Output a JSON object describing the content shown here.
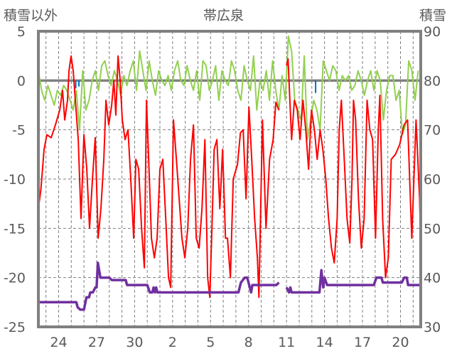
{
  "chart_data": {
    "type": "line",
    "title": "帯広泉",
    "ylabel_left": "積雪以外",
    "ylabel_right": "積雪",
    "ylim_left": [
      -25,
      5
    ],
    "ylim_right": [
      30,
      90
    ],
    "yticks_left": [
      5,
      0,
      -5,
      -10,
      -15,
      -20,
      -25
    ],
    "yticks_right": [
      90,
      80,
      70,
      60,
      50,
      40,
      30
    ],
    "xlim_days": [
      22.4,
      52.6
    ],
    "xticks": [
      {
        "day": 24,
        "label": "24"
      },
      {
        "day": 27,
        "label": "27"
      },
      {
        "day": 30,
        "label": "30"
      },
      {
        "day": 33,
        "label": "2"
      },
      {
        "day": 36,
        "label": "5"
      },
      {
        "day": 39,
        "label": "8"
      },
      {
        "day": 42,
        "label": "11"
      },
      {
        "day": 45,
        "label": "14"
      },
      {
        "day": 48,
        "label": "17"
      },
      {
        "day": 51,
        "label": "20"
      }
    ],
    "grid": true,
    "series": [
      {
        "color": "#92D050",
        "axis": "left",
        "x_start": 22.4,
        "x_step": 0.25,
        "values": [
          1,
          -1,
          -2,
          -0.5,
          -1.5,
          -2.5,
          -1,
          -1.5,
          -0.5,
          -1,
          -2,
          -3,
          -1,
          -5,
          1,
          -3,
          -2,
          0,
          1,
          -1,
          1.5,
          2,
          0.5,
          -0.5,
          1,
          0,
          -1.5,
          0.5,
          -0.5,
          1,
          2,
          -1,
          3,
          1,
          -1,
          2,
          0,
          -1.5,
          1,
          0,
          -0.5,
          0.5,
          -1,
          1,
          2,
          0,
          -0.5,
          1.5,
          0,
          -1,
          1,
          -2,
          2,
          1.5,
          -1,
          0,
          1.5,
          -2,
          1,
          0,
          -0.5,
          2,
          1,
          -1,
          -2,
          1.5,
          0,
          -1,
          2.5,
          -3,
          0,
          -1,
          1,
          -2,
          2,
          -1,
          -3,
          0.5,
          -2,
          4.5,
          3,
          -2,
          -3,
          -4,
          2.5,
          -6,
          -4,
          -2,
          -3,
          -5,
          2,
          1,
          0,
          1.5,
          1,
          -1,
          0.5,
          0,
          0.5,
          -1,
          -0.5,
          1,
          0,
          -1.5,
          0,
          1,
          -1,
          1,
          0,
          -4,
          -1,
          0.5,
          0.5,
          -2,
          -1,
          -5.5,
          -4.5,
          2,
          1,
          -2,
          1
        ]
      },
      {
        "color": "#FF0000",
        "axis": "left",
        "segments": [
          [
            [
              22.4,
              -13
            ],
            [
              22.6,
              -11
            ],
            [
              22.85,
              -7
            ],
            [
              23.07,
              -5.5
            ],
            [
              23.41,
              -5.8
            ],
            [
              23.75,
              -4.5
            ],
            [
              24.09,
              -3
            ],
            [
              24.31,
              -1
            ],
            [
              24.48,
              -4
            ],
            [
              24.7,
              -2
            ],
            [
              24.82,
              1
            ],
            [
              24.98,
              2.5
            ],
            [
              25.15,
              1
            ],
            [
              25.32,
              -2
            ],
            [
              25.55,
              -6
            ],
            [
              25.77,
              -14
            ],
            [
              26.0,
              -5.5
            ],
            [
              26.22,
              -9
            ],
            [
              26.44,
              -15
            ],
            [
              26.67,
              -10
            ],
            [
              26.89,
              -5.8
            ],
            [
              27.12,
              -16
            ],
            [
              27.34,
              -13
            ],
            [
              27.57,
              -8
            ],
            [
              27.74,
              -2
            ],
            [
              27.96,
              -4.5
            ],
            [
              28.19,
              -2.5
            ],
            [
              28.36,
              0
            ],
            [
              28.52,
              -3.5
            ],
            [
              28.69,
              2.5
            ],
            [
              28.86,
              0
            ],
            [
              29.03,
              -4
            ],
            [
              29.25,
              -6
            ],
            [
              29.48,
              -5
            ],
            [
              29.7,
              -10
            ],
            [
              29.93,
              -16
            ],
            [
              30.1,
              -8
            ],
            [
              30.32,
              -9
            ],
            [
              30.55,
              -15
            ],
            [
              30.77,
              -19
            ],
            [
              30.94,
              -2
            ],
            [
              31.11,
              -8
            ],
            [
              31.33,
              -16
            ],
            [
              31.56,
              -18
            ],
            [
              31.78,
              -16
            ],
            [
              32.0,
              -9
            ],
            [
              32.23,
              -8
            ],
            [
              32.46,
              -14
            ],
            [
              32.68,
              -20
            ],
            [
              32.85,
              -21
            ],
            [
              33.07,
              -4
            ],
            [
              33.3,
              -8
            ],
            [
              33.52,
              -12
            ],
            [
              33.74,
              -16
            ],
            [
              33.97,
              -18
            ],
            [
              34.2,
              -15
            ],
            [
              34.42,
              -8
            ],
            [
              34.65,
              -4.5
            ],
            [
              34.87,
              -16
            ],
            [
              35.1,
              -17
            ],
            [
              35.32,
              -13
            ],
            [
              35.55,
              -6
            ],
            [
              35.77,
              -20
            ],
            [
              35.94,
              -22
            ],
            [
              36.11,
              -15
            ],
            [
              36.28,
              -7
            ],
            [
              36.5,
              -6
            ],
            [
              36.73,
              -13
            ],
            [
              36.95,
              -7
            ],
            [
              37.18,
              -16
            ],
            [
              37.34,
              -16
            ],
            [
              37.57,
              -20
            ],
            [
              37.79,
              -10
            ],
            [
              38.13,
              -8.5
            ],
            [
              38.36,
              -5.3
            ],
            [
              38.58,
              -5
            ],
            [
              38.8,
              -12
            ],
            [
              39.03,
              -2.7
            ],
            [
              39.25,
              -8
            ],
            [
              39.48,
              -14
            ],
            [
              39.7,
              -18
            ],
            [
              39.82,
              -22
            ],
            [
              40.1,
              -4
            ],
            [
              40.38,
              -15
            ],
            [
              40.66,
              -8
            ],
            [
              40.94,
              -6
            ],
            [
              41.16,
              -2.2
            ],
            [
              41.39,
              -3
            ]
          ],
          [
            [
              42.0,
              1.5
            ],
            [
              42.12,
              2.2
            ],
            [
              42.4,
              -6
            ],
            [
              42.62,
              -2
            ],
            [
              42.85,
              -3
            ],
            [
              43.07,
              -6
            ],
            [
              43.3,
              -2
            ],
            [
              43.52,
              -5
            ],
            [
              43.74,
              -9
            ],
            [
              43.97,
              -3
            ],
            [
              44.2,
              -5
            ],
            [
              44.42,
              -8
            ],
            [
              44.65,
              -5
            ],
            [
              44.87,
              -7
            ],
            [
              45.1,
              -10
            ],
            [
              45.32,
              -14
            ],
            [
              45.55,
              -17
            ],
            [
              45.77,
              -18.5
            ],
            [
              46.0,
              -14
            ],
            [
              46.16,
              -5
            ],
            [
              46.33,
              -2
            ],
            [
              46.56,
              -8
            ],
            [
              46.78,
              -14
            ],
            [
              47.0,
              -16.5
            ],
            [
              47.17,
              -10
            ],
            [
              47.29,
              -2
            ],
            [
              47.46,
              -4
            ],
            [
              47.68,
              -12
            ],
            [
              47.91,
              -17
            ],
            [
              48.13,
              -14
            ],
            [
              48.36,
              -2
            ],
            [
              48.58,
              -5
            ],
            [
              48.8,
              -6
            ],
            [
              49.03,
              -16
            ],
            [
              49.25,
              -5
            ],
            [
              49.37,
              -1.5
            ],
            [
              49.59,
              -14
            ],
            [
              49.82,
              -20
            ],
            [
              50.04,
              -18
            ],
            [
              50.27,
              -8
            ],
            [
              50.6,
              -7.5
            ],
            [
              50.94,
              -6.5
            ],
            [
              51.28,
              -4.5
            ],
            [
              51.56,
              -4
            ],
            [
              51.89,
              -16
            ],
            [
              52.23,
              -4
            ],
            [
              52.51,
              -12
            ],
            [
              52.62,
              -18
            ]
          ]
        ]
      },
      {
        "color": "#0070C0",
        "axis": "left",
        "segments": [
          [
            [
              25.35,
              0
            ],
            [
              25.35,
              -0.8
            ]
          ],
          [
            [
              25.6,
              0
            ],
            [
              25.6,
              -0.6
            ]
          ],
          [
            [
              44.3,
              0
            ],
            [
              44.3,
              -1.2
            ],
            [
              44.35,
              -1.2
            ]
          ]
        ]
      },
      {
        "color": "#7030A0",
        "axis": "right",
        "segments": [
          [
            [
              22.4,
              35
            ],
            [
              25.4,
              35
            ],
            [
              25.5,
              34
            ],
            [
              25.7,
              33.5
            ],
            [
              26.0,
              33.5
            ],
            [
              26.2,
              36
            ],
            [
              26.4,
              36
            ],
            [
              26.5,
              37
            ],
            [
              26.7,
              37
            ],
            [
              26.9,
              38
            ],
            [
              27.0,
              38
            ],
            [
              27.1,
              43
            ],
            [
              27.3,
              40
            ],
            [
              28.0,
              40
            ],
            [
              28.2,
              39.5
            ],
            [
              29.3,
              39.5
            ],
            [
              29.4,
              38.5
            ],
            [
              31.0,
              38.5
            ],
            [
              31.2,
              37
            ],
            [
              31.4,
              37
            ],
            [
              31.5,
              38
            ],
            [
              31.6,
              37
            ],
            [
              31.7,
              38
            ],
            [
              31.8,
              37
            ],
            [
              38.2,
              37
            ],
            [
              38.4,
              39
            ],
            [
              38.7,
              40
            ],
            [
              38.9,
              40
            ],
            [
              39.1,
              38
            ],
            [
              39.2,
              37
            ],
            [
              39.3,
              38.5
            ],
            [
              41.2,
              38.5
            ],
            [
              41.4,
              39
            ]
          ],
          [
            [
              42.0,
              38
            ],
            [
              42.2,
              37
            ],
            [
              42.3,
              38
            ],
            [
              42.4,
              37
            ],
            [
              44.6,
              37
            ],
            [
              44.75,
              41.5
            ],
            [
              44.9,
              38
            ],
            [
              45.0,
              40
            ],
            [
              45.2,
              38.5
            ],
            [
              48.9,
              38.5
            ],
            [
              49.1,
              40
            ],
            [
              49.5,
              40
            ],
            [
              49.6,
              39
            ],
            [
              51.1,
              39
            ],
            [
              51.3,
              40
            ],
            [
              51.5,
              40
            ],
            [
              51.6,
              38.5
            ],
            [
              52.6,
              38.5
            ]
          ]
        ]
      }
    ]
  }
}
